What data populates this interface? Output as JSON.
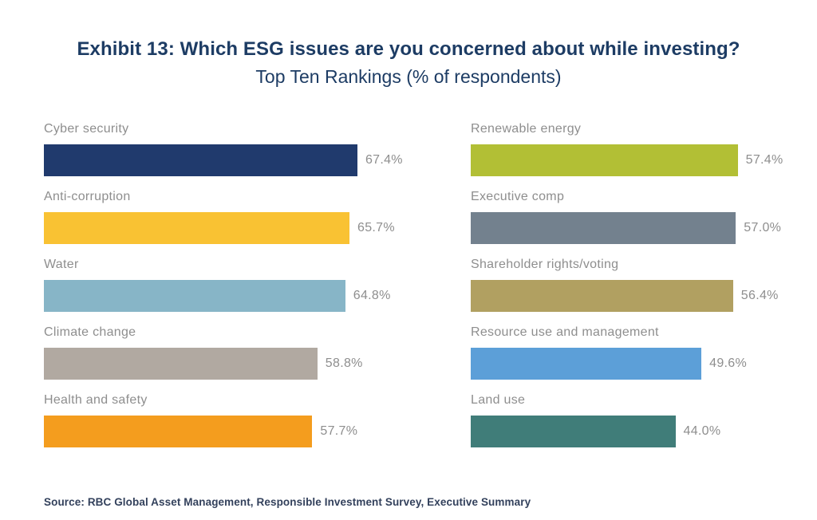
{
  "header": {
    "title": "Exhibit 13: Which ESG issues are you concerned about while investing?",
    "subtitle": "Top Ten Rankings (% of respondents)"
  },
  "source_note": "Source: RBC Global Asset Management, Responsible Investment Survey, Executive Summary",
  "colors": {
    "title_text": "#1d3c64",
    "label_text": "#8e8e8e",
    "source_text": "#33415c",
    "background": "#ffffff"
  },
  "chart_data": {
    "type": "bar",
    "orientation": "horizontal",
    "unit": "%",
    "title": "Exhibit 13: Which ESG issues are you concerned about while investing?",
    "subtitle": "Top Ten Rankings (% of respondents)",
    "xlim": [
      0,
      70
    ],
    "grid": false,
    "legend": false,
    "value_labels": "outside-right",
    "columns": [
      {
        "name": "left",
        "items": [
          {
            "label": "Cyber security",
            "value": 67.4,
            "display": "67.4%",
            "color": "#203a6d"
          },
          {
            "label": "Anti-corruption",
            "value": 65.7,
            "display": "65.7%",
            "color": "#f9c233"
          },
          {
            "label": "Water",
            "value": 64.8,
            "display": "64.8%",
            "color": "#87b5c7"
          },
          {
            "label": "Climate change",
            "value": 58.8,
            "display": "58.8%",
            "color": "#b1a9a1"
          },
          {
            "label": "Health and safety",
            "value": 57.7,
            "display": "57.7%",
            "color": "#f49d1e"
          }
        ]
      },
      {
        "name": "right",
        "items": [
          {
            "label": "Renewable energy",
            "value": 57.4,
            "display": "57.4%",
            "color": "#b2bf35"
          },
          {
            "label": "Executive comp",
            "value": 57.0,
            "display": "57.0%",
            "color": "#73818e"
          },
          {
            "label": "Shareholder rights/voting",
            "value": 56.4,
            "display": "56.4%",
            "color": "#b1a061"
          },
          {
            "label": "Resource use and management",
            "value": 49.6,
            "display": "49.6%",
            "color": "#5c9fd8"
          },
          {
            "label": "Land use",
            "value": 44.0,
            "display": "44.0%",
            "color": "#407d79"
          }
        ]
      }
    ]
  }
}
